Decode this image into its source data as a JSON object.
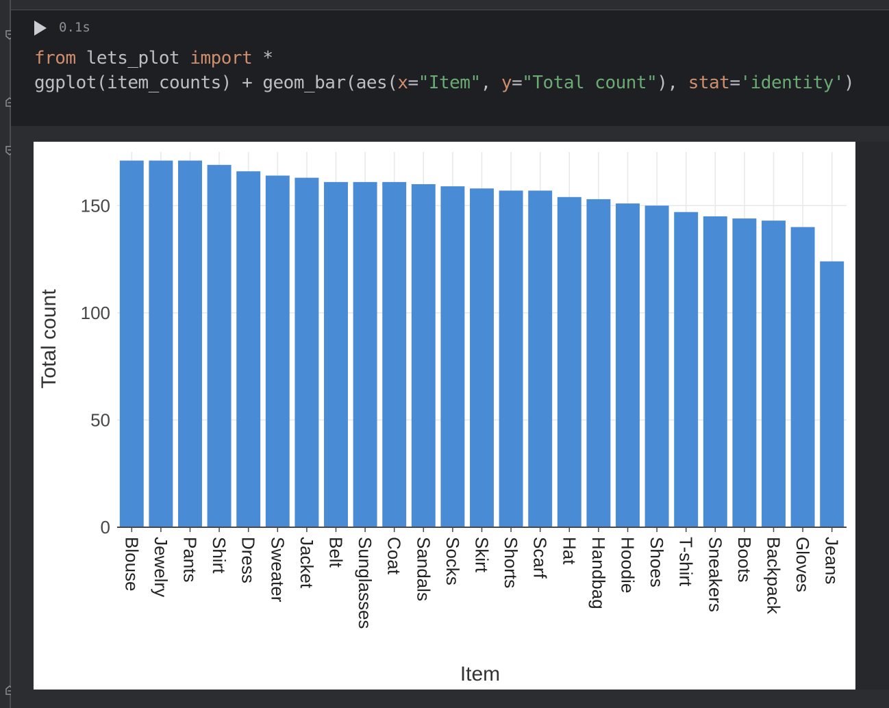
{
  "cell": {
    "exec_time": "0.1s",
    "code_line1": {
      "kw1": "from",
      "mod": " lets_plot ",
      "kw2": "import",
      "rest": " *"
    },
    "code_line2": {
      "p1": "ggplot(item_counts) + geom_bar(aes(",
      "x_arg": "x",
      "eq1": "=",
      "x_val": "\"Item\"",
      "comma1": ", ",
      "y_arg": "y",
      "eq2": "=",
      "y_val": "\"Total count\"",
      "close1": "), ",
      "stat_arg": "stat",
      "eq3": "=",
      "stat_val": "'identity'",
      "close2": ")"
    }
  },
  "colors": {
    "bar": "#4a8bd6",
    "grid": "#e8e8e8",
    "axis": "#474747"
  },
  "chart_data": {
    "type": "bar",
    "xlabel": "Item",
    "ylabel": "Total count",
    "ylim": [
      0,
      175
    ],
    "yticks": [
      0,
      50,
      100,
      150
    ],
    "categories": [
      "Blouse",
      "Jewelry",
      "Pants",
      "Shirt",
      "Dress",
      "Sweater",
      "Jacket",
      "Belt",
      "Sunglasses",
      "Coat",
      "Sandals",
      "Socks",
      "Skirt",
      "Shorts",
      "Scarf",
      "Hat",
      "Handbag",
      "Hoodie",
      "Shoes",
      "T-shirt",
      "Sneakers",
      "Boots",
      "Backpack",
      "Gloves",
      "Jeans"
    ],
    "values": [
      171,
      171,
      171,
      169,
      166,
      164,
      163,
      161,
      161,
      161,
      160,
      159,
      158,
      157,
      157,
      154,
      153,
      151,
      150,
      147,
      145,
      144,
      143,
      140,
      124
    ]
  }
}
